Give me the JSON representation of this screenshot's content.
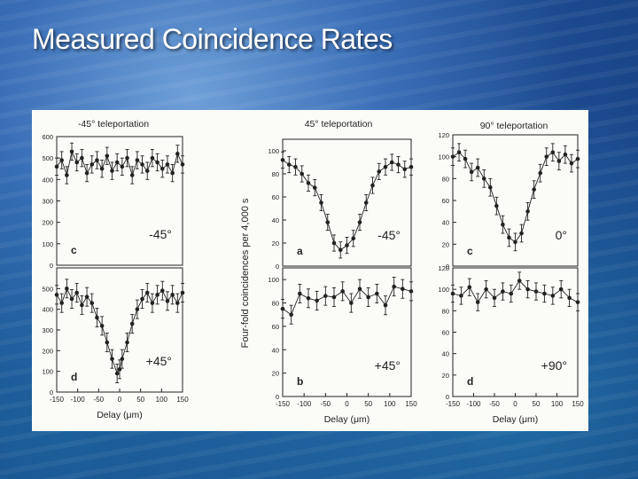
{
  "slide": {
    "title": "Measured Coincidence Rates"
  },
  "colors": {
    "ink": "#222222",
    "paper": "#fbfbf8"
  },
  "figure": {
    "ylabel": "Four-fold coincidences per 4,000 s"
  },
  "chart_data": [
    {
      "id": "col1-top",
      "type": "scatter",
      "column_title": "-45° teleportation",
      "panel_letter": "c",
      "angle_label": "-45°",
      "ylim": [
        0,
        600
      ],
      "yticks": [
        0,
        100,
        200,
        300,
        400,
        500,
        600
      ],
      "xlim": [
        -150,
        150
      ],
      "xticks": [],
      "xlabel": "",
      "x": [
        -150,
        -138,
        -126,
        -114,
        -102,
        -90,
        -78,
        -66,
        -54,
        -42,
        -30,
        -18,
        -6,
        6,
        18,
        30,
        42,
        54,
        66,
        78,
        90,
        102,
        114,
        126,
        138,
        150
      ],
      "y": [
        460,
        490,
        420,
        530,
        480,
        500,
        430,
        470,
        490,
        450,
        510,
        440,
        480,
        460,
        500,
        420,
        490,
        470,
        440,
        500,
        480,
        450,
        470,
        430,
        520,
        470
      ],
      "err": 40
    },
    {
      "id": "col1-bottom",
      "type": "scatter",
      "column_title": "",
      "panel_letter": "d",
      "angle_label": "+45°",
      "ylim": [
        0,
        600
      ],
      "yticks": [
        0,
        100,
        200,
        300,
        400,
        500
      ],
      "xlim": [
        -150,
        150
      ],
      "xticks": [
        -150,
        -100,
        -50,
        0,
        50,
        100,
        150
      ],
      "xlabel": "Delay (μm)",
      "x": [
        -150,
        -138,
        -126,
        -114,
        -102,
        -90,
        -78,
        -66,
        -54,
        -42,
        -30,
        -18,
        -6,
        0,
        6,
        18,
        30,
        42,
        54,
        66,
        78,
        90,
        102,
        114,
        126,
        138,
        150
      ],
      "y": [
        470,
        430,
        500,
        450,
        480,
        420,
        460,
        430,
        360,
        320,
        240,
        160,
        90,
        110,
        160,
        240,
        330,
        400,
        450,
        480,
        430,
        470,
        490,
        440,
        470,
        430,
        480
      ],
      "err": 45
    },
    {
      "id": "col2-top",
      "type": "scatter",
      "column_title": "45° teleportation",
      "panel_letter": "a",
      "angle_label": "-45°",
      "ylim": [
        0,
        110
      ],
      "yticks": [
        0,
        20,
        40,
        60,
        80,
        100
      ],
      "xlim": [
        -150,
        150
      ],
      "xticks": [],
      "xlabel": "",
      "x": [
        -150,
        -135,
        -120,
        -105,
        -90,
        -75,
        -60,
        -45,
        -30,
        -15,
        0,
        15,
        30,
        45,
        60,
        75,
        90,
        105,
        120,
        135,
        150
      ],
      "y": [
        92,
        88,
        86,
        80,
        72,
        68,
        55,
        38,
        20,
        14,
        18,
        24,
        38,
        55,
        70,
        82,
        86,
        90,
        88,
        84,
        86
      ],
      "err": 7
    },
    {
      "id": "col2-bottom",
      "type": "scatter",
      "column_title": "",
      "panel_letter": "b",
      "angle_label": "+45°",
      "ylim": [
        0,
        110
      ],
      "yticks": [
        0,
        20,
        40,
        60,
        80,
        100
      ],
      "xlim": [
        -150,
        150
      ],
      "xticks": [
        -150,
        -100,
        -50,
        0,
        50,
        100,
        150
      ],
      "xlabel": "Delay (μm)",
      "x": [
        -150,
        -130,
        -110,
        -90,
        -70,
        -50,
        -30,
        -10,
        10,
        30,
        50,
        70,
        90,
        110,
        130,
        150
      ],
      "y": [
        75,
        70,
        88,
        84,
        82,
        86,
        85,
        90,
        80,
        92,
        85,
        88,
        78,
        94,
        92,
        90
      ],
      "err": 8
    },
    {
      "id": "col3-top",
      "type": "scatter",
      "column_title": "90° teleportation",
      "panel_letter": "c",
      "angle_label": "0°",
      "ylim": [
        0,
        120
      ],
      "yticks": [
        0,
        20,
        40,
        60,
        80,
        100,
        120
      ],
      "xlim": [
        -150,
        150
      ],
      "xticks": [],
      "xlabel": "",
      "x": [
        -150,
        -135,
        -120,
        -105,
        -90,
        -75,
        -60,
        -45,
        -30,
        -15,
        0,
        15,
        30,
        45,
        60,
        75,
        90,
        105,
        120,
        135,
        150
      ],
      "y": [
        100,
        104,
        98,
        86,
        90,
        80,
        72,
        55,
        38,
        26,
        22,
        30,
        50,
        70,
        85,
        100,
        104,
        96,
        102,
        94,
        98
      ],
      "err": 8
    },
    {
      "id": "col3-bottom",
      "type": "scatter",
      "column_title": "",
      "panel_letter": "d",
      "angle_label": "+90°",
      "ylim": [
        0,
        120
      ],
      "yticks": [
        0,
        20,
        40,
        60,
        80,
        100,
        120
      ],
      "xlim": [
        -150,
        150
      ],
      "xticks": [
        -150,
        -100,
        -50,
        0,
        50,
        100,
        150
      ],
      "xlabel": "Delay (μm)",
      "x": [
        -150,
        -130,
        -110,
        -90,
        -70,
        -50,
        -30,
        -10,
        10,
        30,
        50,
        70,
        90,
        110,
        130,
        150
      ],
      "y": [
        96,
        94,
        102,
        88,
        100,
        92,
        98,
        96,
        108,
        100,
        98,
        96,
        94,
        100,
        92,
        88
      ],
      "err": 8
    }
  ]
}
